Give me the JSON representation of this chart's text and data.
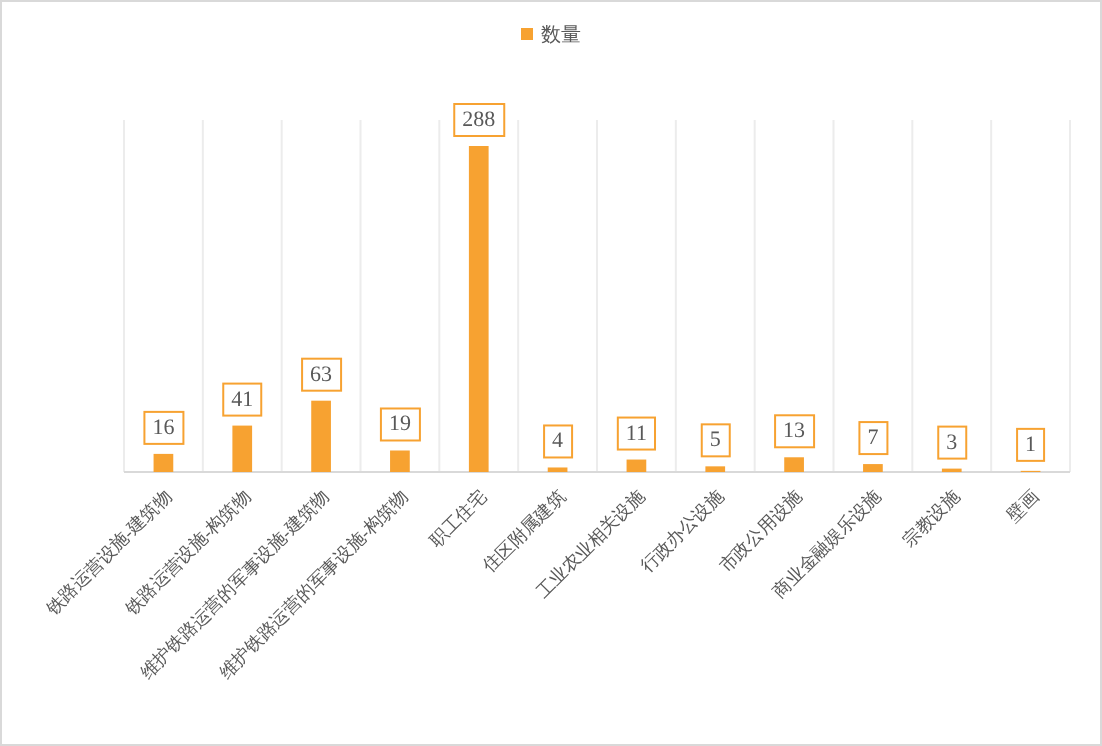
{
  "chart_data": {
    "type": "bar",
    "categories": [
      "铁路运营设施-建筑物",
      "铁路运营设施-构筑物",
      "维护铁路运营的军事设施-建筑物",
      "维护铁路运营的军事设施-构筑物",
      "职工住宅",
      "住区附属建筑",
      "工业农业相关设施",
      "行政办公设施",
      "市政公用设施",
      "商业金融娱乐设施",
      "宗教设施",
      "壁画"
    ],
    "series": [
      {
        "name": "数量",
        "color": "#f7a231",
        "values": [
          16,
          41,
          63,
          19,
          288,
          4,
          11,
          5,
          13,
          7,
          3,
          1
        ]
      }
    ],
    "data_labels": true,
    "legend": "top",
    "grid": "x"
  }
}
